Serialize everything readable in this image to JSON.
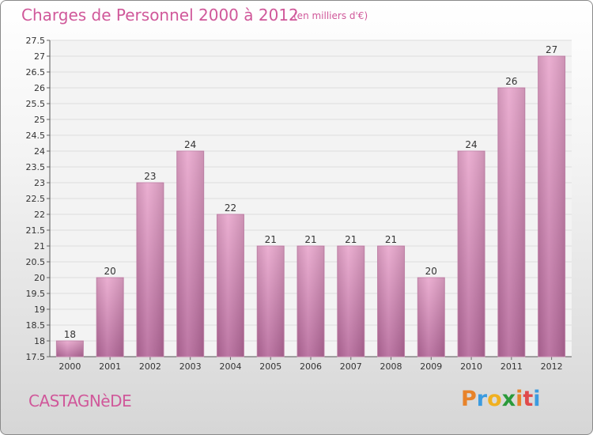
{
  "header": {
    "title": "Charges de Personnel 2000 à 2012",
    "subtitle": "(en milliers d'€)"
  },
  "footer": {
    "commune": "CASTAGNèDE",
    "logo_letters": [
      "P",
      "r",
      "o",
      "x",
      "i",
      "t",
      "i"
    ],
    "logo_colors": [
      "#e8832a",
      "#3b9be0",
      "#f0b020",
      "#2a9a3a",
      "#e8832a",
      "#e04a4a",
      "#3b9be0"
    ]
  },
  "colors": {
    "bar_light": "#e8a6cc",
    "bar_dark": "#b5689a",
    "accent": "#d0589a"
  },
  "chart_data": {
    "type": "bar",
    "categories": [
      "2000",
      "2001",
      "2002",
      "2003",
      "2004",
      "2005",
      "2006",
      "2007",
      "2008",
      "2009",
      "2010",
      "2011",
      "2012"
    ],
    "values": [
      18,
      20,
      23,
      24,
      22,
      21,
      21,
      21,
      21,
      20,
      24,
      26,
      27
    ],
    "data_labels": [
      "18",
      "20",
      "23",
      "24",
      "22",
      "21",
      "21",
      "21",
      "21",
      "20",
      "24",
      "26",
      "27"
    ],
    "y_ticks": [
      "17.5",
      "18",
      "18.5",
      "19",
      "19.5",
      "20",
      "20.5",
      "21",
      "21.5",
      "22",
      "22.5",
      "23",
      "23.5",
      "24",
      "24.5",
      "25",
      "25.5",
      "26",
      "26.5",
      "27",
      "27.5"
    ],
    "ylim": [
      17.5,
      27.5
    ],
    "grid": true
  }
}
